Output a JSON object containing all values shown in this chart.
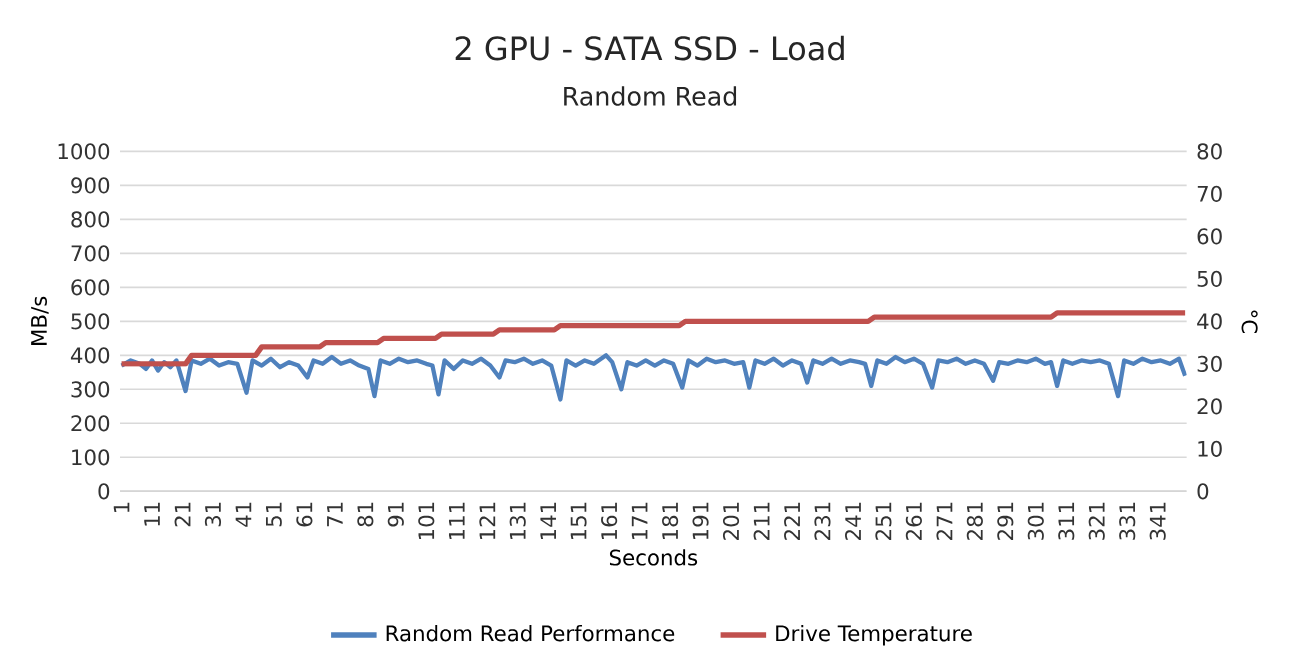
{
  "chart_data": {
    "type": "line",
    "title": "2 GPU - SATA SSD - Load",
    "subtitle": "Random Read",
    "xlabel": "Seconds",
    "ylabel": "MB/s",
    "y2label": "°C",
    "xlim": [
      0.5,
      350.5
    ],
    "xticks": [
      1,
      11,
      21,
      31,
      41,
      51,
      61,
      71,
      81,
      91,
      101,
      111,
      121,
      131,
      141,
      151,
      161,
      171,
      181,
      191,
      201,
      211,
      221,
      231,
      241,
      251,
      261,
      271,
      281,
      291,
      301,
      311,
      321,
      331,
      341
    ],
    "ylim": [
      0,
      1000
    ],
    "yticks": [
      0,
      100,
      200,
      300,
      400,
      500,
      600,
      700,
      800,
      900,
      1000
    ],
    "y2lim": [
      0,
      80
    ],
    "y2ticks": [
      0,
      10,
      20,
      30,
      40,
      50,
      60,
      70,
      80
    ],
    "grid": "y",
    "legend": "bottom",
    "marker": "none",
    "line_style": "solid",
    "series": [
      {
        "name": "Random Read Performance",
        "color": "#4f81bd",
        "x": [
          1,
          4,
          7,
          9,
          11,
          13,
          15,
          17,
          19,
          22,
          24,
          27,
          30,
          33,
          36,
          39,
          42,
          44,
          47,
          50,
          53,
          56,
          59,
          62,
          64,
          67,
          70,
          73,
          76,
          79,
          82,
          84,
          86,
          89,
          92,
          95,
          98,
          101,
          103,
          105,
          107,
          110,
          113,
          116,
          119,
          122,
          125,
          127,
          130,
          133,
          136,
          139,
          142,
          145,
          147,
          150,
          153,
          156,
          160,
          162,
          165,
          167,
          170,
          173,
          176,
          179,
          182,
          185,
          187,
          190,
          193,
          196,
          199,
          202,
          205,
          207,
          209,
          212,
          215,
          218,
          221,
          224,
          226,
          228,
          231,
          234,
          237,
          240,
          243,
          245,
          247,
          249,
          252,
          255,
          258,
          261,
          264,
          267,
          269,
          272,
          275,
          278,
          281,
          284,
          287,
          289,
          292,
          295,
          298,
          301,
          304,
          306,
          308,
          310,
          313,
          316,
          319,
          322,
          325,
          328,
          330,
          333,
          336,
          339,
          342,
          345,
          348,
          350
        ],
        "values": [
          370,
          385,
          375,
          360,
          385,
          355,
          380,
          365,
          385,
          295,
          385,
          375,
          390,
          370,
          380,
          375,
          290,
          385,
          370,
          390,
          365,
          380,
          370,
          335,
          385,
          375,
          395,
          375,
          385,
          370,
          360,
          280,
          385,
          375,
          390,
          380,
          385,
          375,
          370,
          285,
          385,
          360,
          385,
          375,
          390,
          370,
          335,
          385,
          380,
          390,
          375,
          385,
          370,
          270,
          385,
          370,
          385,
          375,
          400,
          380,
          300,
          380,
          370,
          385,
          370,
          385,
          375,
          305,
          385,
          370,
          390,
          380,
          385,
          375,
          380,
          305,
          385,
          375,
          390,
          370,
          385,
          375,
          320,
          385,
          375,
          390,
          375,
          385,
          380,
          375,
          310,
          385,
          375,
          395,
          380,
          390,
          375,
          305,
          385,
          380,
          390,
          375,
          385,
          375,
          325,
          380,
          375,
          385,
          380,
          390,
          375,
          380,
          310,
          385,
          375,
          385,
          380,
          385,
          375,
          280,
          385,
          375,
          390,
          380,
          385,
          375,
          390,
          340
        ]
      },
      {
        "name": "Drive Temperature",
        "color": "#c0504d",
        "axis": "y2",
        "x": [
          1,
          22,
          24,
          45,
          47,
          66,
          68,
          85,
          87,
          104,
          106,
          123,
          125,
          143,
          145,
          184,
          186,
          246,
          248,
          306,
          308,
          350
        ],
        "values": [
          30,
          30,
          32,
          32,
          34,
          34,
          35,
          35,
          36,
          36,
          37,
          37,
          38,
          38,
          39,
          39,
          40,
          40,
          41,
          41,
          42,
          42
        ]
      }
    ]
  }
}
